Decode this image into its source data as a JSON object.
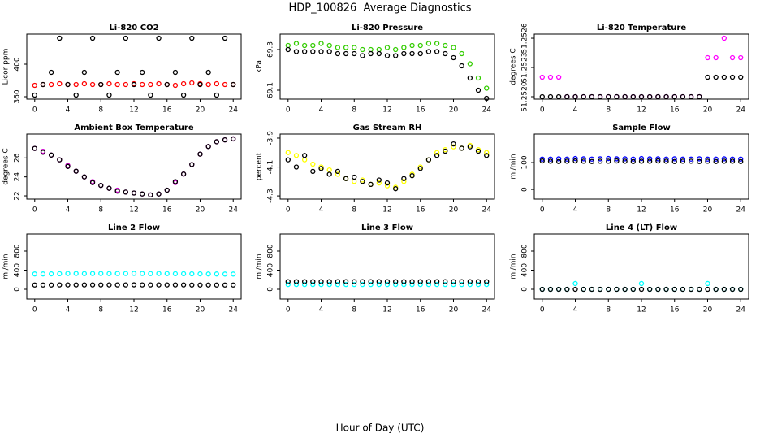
{
  "title": "HDP_100826  Average Diagnostics",
  "xlabel": "Hour of Day (UTC)",
  "chart_data": [
    {
      "type": "scatter",
      "title": "Li-820 CO2",
      "ylabel": "Licor ppm",
      "x": [
        0,
        1,
        2,
        3,
        4,
        5,
        6,
        7,
        8,
        9,
        10,
        11,
        12,
        13,
        14,
        15,
        16,
        17,
        18,
        19,
        20,
        21,
        22,
        23,
        24
      ],
      "xlim": [
        -0.96,
        24.96
      ],
      "xticks": [
        0,
        4,
        8,
        12,
        16,
        20,
        24
      ],
      "ylim": [
        357,
        437
      ],
      "yticks": [
        360,
        400
      ],
      "series": [
        {
          "color": "#ff0000",
          "values": [
            374,
            375,
            375,
            376,
            375,
            375,
            376,
            375,
            375,
            376,
            375,
            375,
            376,
            375,
            375,
            376,
            375,
            374,
            376,
            377,
            376,
            375,
            376,
            375,
            375
          ]
        },
        {
          "color": "#000000",
          "values": [
            362,
            375,
            390,
            432,
            375,
            362,
            390,
            432,
            375,
            362,
            390,
            432,
            375,
            390,
            362,
            432,
            375,
            390,
            362,
            432,
            375,
            390,
            362,
            432,
            375
          ]
        }
      ]
    },
    {
      "type": "scatter",
      "title": "Li-820 Pressure",
      "ylabel": "kPa",
      "x": [
        0,
        1,
        2,
        3,
        4,
        5,
        6,
        7,
        8,
        9,
        10,
        11,
        12,
        13,
        14,
        15,
        16,
        17,
        18,
        19,
        20,
        21,
        22,
        23,
        24
      ],
      "xlim": [
        -0.96,
        24.96
      ],
      "xticks": [
        0,
        4,
        8,
        12,
        16,
        20,
        24
      ],
      "ylim": [
        69.056,
        69.376
      ],
      "yticks": [
        69.1,
        69.3
      ],
      "series": [
        {
          "color": "#33cc00",
          "values": [
            69.32,
            69.33,
            69.32,
            69.32,
            69.33,
            69.32,
            69.31,
            69.31,
            69.31,
            69.3,
            69.3,
            69.3,
            69.31,
            69.3,
            69.31,
            69.32,
            69.32,
            69.33,
            69.33,
            69.32,
            69.31,
            69.28,
            69.23,
            69.16,
            69.11
          ]
        },
        {
          "color": "#000000",
          "values": [
            69.3,
            69.29,
            69.29,
            69.29,
            69.29,
            69.29,
            69.28,
            69.28,
            69.28,
            69.27,
            69.28,
            69.28,
            69.27,
            69.27,
            69.28,
            69.28,
            69.28,
            69.29,
            69.29,
            69.28,
            69.26,
            69.22,
            69.16,
            69.1,
            69.06
          ]
        }
      ]
    },
    {
      "type": "scatter",
      "title": "Li-820 Temperature",
      "ylabel": "degrees C",
      "x": [
        0,
        1,
        2,
        3,
        4,
        5,
        6,
        7,
        8,
        9,
        10,
        11,
        12,
        13,
        14,
        15,
        16,
        17,
        18,
        19,
        20,
        21,
        22,
        23,
        24
      ],
      "xlim": [
        -0.96,
        24.96
      ],
      "xticks": [
        0,
        4,
        8,
        12,
        16,
        20,
        24
      ],
      "ylim": [
        51.251975,
        51.252642
      ],
      "yticks": [
        {
          "value": 51.252,
          "label": "51.2520"
        },
        {
          "value": 51.2523,
          "label": "51.2523"
        },
        {
          "value": 51.2526,
          "label": "51.2526"
        }
      ],
      "series": [
        {
          "color": "#ff00ff",
          "values": [
            51.2522,
            51.2522,
            51.2522,
            51.252,
            51.252,
            51.252,
            51.252,
            51.252,
            51.252,
            51.252,
            51.252,
            51.252,
            51.252,
            51.252,
            51.252,
            51.252,
            51.252,
            51.252,
            51.252,
            51.252,
            51.2524,
            51.2524,
            51.2526,
            51.2524,
            51.2524
          ]
        },
        {
          "color": "#000000",
          "values": [
            51.252,
            51.252,
            51.252,
            51.252,
            51.252,
            51.252,
            51.252,
            51.252,
            51.252,
            51.252,
            51.252,
            51.252,
            51.252,
            51.252,
            51.252,
            51.252,
            51.252,
            51.252,
            51.252,
            51.252,
            51.2522,
            51.2522,
            51.2522,
            51.2522,
            51.2522
          ]
        }
      ]
    },
    {
      "type": "scatter",
      "title": "Ambient Box Temperature",
      "ylabel": "degrees C",
      "x": [
        0,
        1,
        2,
        3,
        4,
        5,
        6,
        7,
        8,
        9,
        10,
        11,
        12,
        13,
        14,
        15,
        16,
        17,
        18,
        19,
        20,
        21,
        22,
        23,
        24
      ],
      "xlim": [
        -0.96,
        24.96
      ],
      "xticks": [
        0,
        4,
        8,
        12,
        16,
        20,
        24
      ],
      "ylim": [
        21.66,
        28.51
      ],
      "yticks": [
        22,
        24,
        26
      ],
      "series": [
        {
          "color": "#cc00cc",
          "values": [
            27.0,
            26.7,
            26.3,
            25.8,
            25.2,
            24.6,
            24.0,
            23.5,
            23.1,
            22.8,
            22.6,
            22.4,
            22.3,
            22.2,
            22.1,
            22.2,
            22.6,
            23.4,
            24.3,
            25.3,
            26.4,
            27.2,
            27.7,
            27.9,
            28.0
          ]
        },
        {
          "color": "#000000",
          "values": [
            27.0,
            26.6,
            26.3,
            25.8,
            25.1,
            24.6,
            24.0,
            23.4,
            23.1,
            22.8,
            22.5,
            22.4,
            22.3,
            22.2,
            22.1,
            22.2,
            22.6,
            23.5,
            24.3,
            25.3,
            26.4,
            27.2,
            27.7,
            27.9,
            28.0
          ]
        }
      ]
    },
    {
      "type": "scatter",
      "title": "Gas Stream RH",
      "ylabel": "percent",
      "x": [
        0,
        1,
        2,
        3,
        4,
        5,
        6,
        7,
        8,
        9,
        10,
        11,
        12,
        13,
        14,
        15,
        16,
        17,
        18,
        19,
        20,
        21,
        22,
        23,
        24
      ],
      "xlim": [
        -0.96,
        24.96
      ],
      "xticks": [
        0,
        4,
        8,
        12,
        16,
        20,
        24
      ],
      "ylim": [
        -4.322,
        -3.872
      ],
      "yticks": [
        -4.3,
        -4.1,
        -3.9
      ],
      "series": [
        {
          "color": "#ffff00",
          "values": [
            -4.0,
            -4.02,
            -4.05,
            -4.08,
            -4.1,
            -4.12,
            -4.15,
            -4.18,
            -4.2,
            -4.19,
            -4.22,
            -4.21,
            -4.23,
            -4.24,
            -4.2,
            -4.15,
            -4.1,
            -4.05,
            -4.0,
            -3.98,
            -3.96,
            -3.97,
            -3.95,
            -3.98,
            -4.0
          ]
        },
        {
          "color": "#000000",
          "values": [
            -4.05,
            -4.1,
            -4.02,
            -4.13,
            -4.11,
            -4.15,
            -4.13,
            -4.18,
            -4.17,
            -4.2,
            -4.22,
            -4.19,
            -4.21,
            -4.25,
            -4.18,
            -4.16,
            -4.11,
            -4.05,
            -4.02,
            -3.99,
            -3.94,
            -3.97,
            -3.96,
            -3.99,
            -4.02
          ]
        }
      ]
    },
    {
      "type": "scatter",
      "title": "Sample Flow",
      "ylabel": "ml/min",
      "x": [
        0,
        1,
        2,
        3,
        4,
        5,
        6,
        7,
        8,
        9,
        10,
        11,
        12,
        13,
        14,
        15,
        16,
        17,
        18,
        19,
        20,
        21,
        22,
        23,
        24
      ],
      "xlim": [
        -0.96,
        24.96
      ],
      "xticks": [
        0,
        4,
        8,
        12,
        16,
        20,
        24
      ],
      "ylim": [
        -36,
        206
      ],
      "yticks": [
        0,
        100
      ],
      "series": [
        {
          "color": "#0000ff",
          "values": [
            113,
            113,
            114,
            113,
            115,
            114,
            113,
            114,
            115,
            114,
            114,
            113,
            115,
            114,
            114,
            113,
            114,
            113,
            113,
            114,
            113,
            113,
            114,
            113,
            113
          ]
        },
        {
          "color": "#000000",
          "values": [
            106,
            105,
            104,
            105,
            106,
            105,
            104,
            105,
            105,
            106,
            105,
            104,
            105,
            105,
            106,
            105,
            104,
            105,
            105,
            104,
            105,
            104,
            105,
            105,
            104
          ]
        }
      ]
    },
    {
      "type": "scatter",
      "title": "Line 2 Flow",
      "ylabel": "ml/min",
      "x": [
        0,
        1,
        2,
        3,
        4,
        5,
        6,
        7,
        8,
        9,
        10,
        11,
        12,
        13,
        14,
        15,
        16,
        17,
        18,
        19,
        20,
        21,
        22,
        23,
        24
      ],
      "xlim": [
        -0.96,
        24.96
      ],
      "xticks": [
        0,
        4,
        8,
        12,
        16,
        20,
        24
      ],
      "ylim": [
        -204,
        1157
      ],
      "yticks": [
        0,
        400,
        800
      ],
      "series": [
        {
          "color": "#00ffff",
          "values": [
            320,
            320,
            322,
            325,
            330,
            330,
            328,
            330,
            330,
            328,
            330,
            330,
            332,
            330,
            328,
            330,
            328,
            326,
            325,
            324,
            322,
            320,
            320,
            318,
            318
          ]
        },
        {
          "color": "#000000",
          "values": [
            90,
            90,
            90,
            91,
            92,
            92,
            92,
            91,
            92,
            92,
            92,
            92,
            93,
            92,
            92,
            92,
            92,
            91,
            91,
            90,
            90,
            90,
            90,
            90,
            90
          ]
        }
      ]
    },
    {
      "type": "scatter",
      "title": "Line 3 Flow",
      "ylabel": "ml/min",
      "x": [
        0,
        1,
        2,
        3,
        4,
        5,
        6,
        7,
        8,
        9,
        10,
        11,
        12,
        13,
        14,
        15,
        16,
        17,
        18,
        19,
        20,
        21,
        22,
        23,
        24
      ],
      "xlim": [
        -0.96,
        24.96
      ],
      "xticks": [
        0,
        4,
        8,
        12,
        16,
        20,
        24
      ],
      "ylim": [
        -204,
        1157
      ],
      "yticks": [
        0,
        400,
        800
      ],
      "series": [
        {
          "color": "#00ffff",
          "values": [
            100,
            100,
            100,
            100,
            100,
            100,
            100,
            100,
            100,
            100,
            100,
            100,
            100,
            100,
            100,
            100,
            100,
            100,
            100,
            100,
            100,
            100,
            100,
            100,
            100
          ]
        },
        {
          "color": "#000000",
          "values": [
            160,
            160,
            160,
            160,
            160,
            160,
            160,
            160,
            160,
            160,
            160,
            160,
            160,
            160,
            160,
            160,
            160,
            160,
            160,
            160,
            160,
            160,
            160,
            160,
            160
          ]
        }
      ]
    },
    {
      "type": "scatter",
      "title": "Line 4 (LT) Flow",
      "ylabel": "ml/min",
      "x": [
        0,
        1,
        2,
        3,
        4,
        5,
        6,
        7,
        8,
        9,
        10,
        11,
        12,
        13,
        14,
        15,
        16,
        17,
        18,
        19,
        20,
        21,
        22,
        23,
        24
      ],
      "xlim": [
        -0.96,
        24.96
      ],
      "xticks": [
        0,
        4,
        8,
        12,
        16,
        20,
        24
      ],
      "ylim": [
        -204,
        1157
      ],
      "yticks": [
        0,
        400,
        800
      ],
      "series": [
        {
          "color": "#00ffff",
          "values": [
            0,
            0,
            0,
            0,
            120,
            0,
            0,
            0,
            0,
            0,
            0,
            0,
            120,
            0,
            0,
            0,
            0,
            0,
            0,
            0,
            120,
            0,
            0,
            0,
            0
          ]
        },
        {
          "color": "#000000",
          "values": [
            0,
            0,
            0,
            0,
            0,
            0,
            0,
            0,
            0,
            0,
            0,
            0,
            0,
            0,
            0,
            0,
            0,
            0,
            0,
            0,
            0,
            0,
            0,
            0,
            0
          ]
        }
      ]
    }
  ]
}
